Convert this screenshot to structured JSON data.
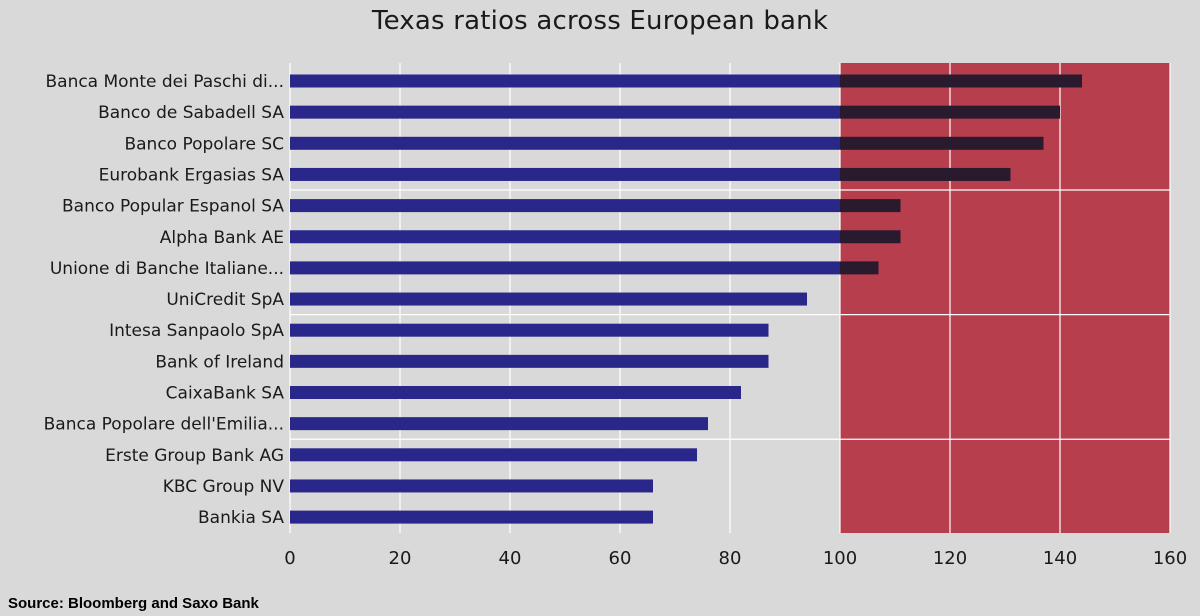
{
  "colors": {
    "background": "#d9d9d9",
    "bar": "#29278a",
    "bar_over_threshold": "#2a1a2e",
    "danger_zone": "#b73e4d",
    "grid": "#ffffff",
    "text": "#1a1a1a"
  },
  "chart_data": {
    "type": "bar",
    "orientation": "horizontal",
    "title": "Texas ratios across European bank",
    "source": "Source: Bloomberg and Saxo Bank",
    "categories": [
      "Banca Monte dei Paschi di...",
      "Banco de Sabadell SA",
      "Banco Popolare SC",
      "Eurobank Ergasias SA",
      "Banco Popular Espanol SA",
      "Alpha Bank AE",
      "Unione di Banche Italiane...",
      "UniCredit SpA",
      "Intesa Sanpaolo SpA",
      "Bank of Ireland",
      "CaixaBank SA",
      "Banca Popolare dell'Emilia...",
      "Erste Group Bank AG",
      "KBC Group NV",
      "Bankia SA"
    ],
    "values": [
      144,
      140,
      137,
      131,
      111,
      111,
      107,
      94,
      87,
      87,
      82,
      76,
      74,
      66,
      66
    ],
    "threshold": 100,
    "highlight_range": [
      100,
      160
    ],
    "xlim": [
      0,
      160
    ],
    "x_ticks": [
      0,
      20,
      40,
      60,
      80,
      100,
      120,
      140,
      160
    ],
    "grid": true,
    "legend": "none"
  }
}
